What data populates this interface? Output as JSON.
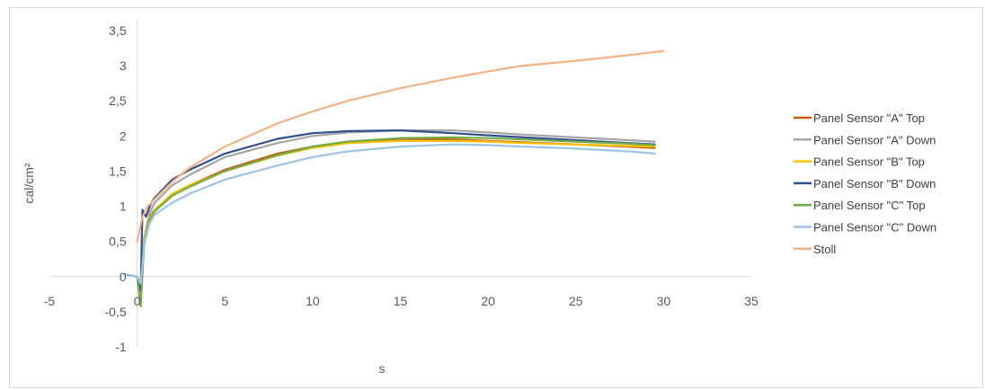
{
  "chart_data": {
    "type": "line",
    "title": "",
    "xlabel": "s",
    "ylabel": "cal/cm²",
    "xlim": [
      -5,
      35
    ],
    "ylim": [
      -1,
      3.5
    ],
    "x_ticks": [
      "-5",
      "0",
      "5",
      "10",
      "15",
      "20",
      "25",
      "30",
      "35"
    ],
    "y_ticks": [
      "-1",
      "-0,5",
      "0",
      "0,5",
      "1",
      "1,5",
      "2",
      "2,5",
      "3",
      "3,5"
    ],
    "grid": false,
    "legend_position": "right",
    "series": [
      {
        "name": "Panel Sensor \"A\" Top",
        "color": "#c55a11",
        "x": [
          -0.7,
          0,
          0.2,
          0.4,
          0.7,
          1,
          2,
          3,
          5,
          8,
          10,
          12,
          15,
          18,
          20,
          22,
          25,
          28,
          29.5
        ],
        "y": [
          0.03,
          0,
          -0.15,
          0.5,
          0.85,
          0.95,
          1.15,
          1.3,
          1.52,
          1.75,
          1.85,
          1.92,
          1.96,
          1.95,
          1.93,
          1.91,
          1.88,
          1.85,
          1.83
        ]
      },
      {
        "name": "Panel Sensor \"A\" Down",
        "color": "#a5a5a5",
        "x": [
          -0.7,
          0,
          0.2,
          0.4,
          0.7,
          1,
          2,
          3,
          5,
          8,
          10,
          12,
          15,
          18,
          20,
          22,
          25,
          28,
          29.5
        ],
        "y": [
          0.03,
          0,
          -0.2,
          0.55,
          0.9,
          1.05,
          1.3,
          1.45,
          1.7,
          1.9,
          2.0,
          2.05,
          2.08,
          2.08,
          2.05,
          2.02,
          1.98,
          1.94,
          1.92
        ]
      },
      {
        "name": "Panel Sensor \"B\" Top",
        "color": "#ffc000",
        "x": [
          -0.7,
          0,
          0.2,
          0.4,
          0.7,
          1,
          2,
          3,
          5,
          8,
          10,
          12,
          15,
          18,
          20,
          22,
          25,
          28,
          29.5
        ],
        "y": [
          0.03,
          0,
          -0.3,
          0.5,
          0.82,
          0.95,
          1.18,
          1.3,
          1.5,
          1.72,
          1.83,
          1.9,
          1.93,
          1.93,
          1.92,
          1.9,
          1.88,
          1.86,
          1.85
        ]
      },
      {
        "name": "Panel Sensor \"B\" Down",
        "color": "#2f4f8f",
        "x": [
          -0.7,
          0,
          0.2,
          0.3,
          0.5,
          0.8,
          1,
          2,
          3,
          5,
          8,
          10,
          12,
          15,
          18,
          20,
          22,
          25,
          28,
          29.5
        ],
        "y": [
          0.03,
          0,
          -0.2,
          0.95,
          0.85,
          1.05,
          1.12,
          1.38,
          1.52,
          1.75,
          1.96,
          2.04,
          2.07,
          2.08,
          2.04,
          2.01,
          1.98,
          1.94,
          1.9,
          1.88
        ]
      },
      {
        "name": "Panel Sensor \"C\" Top",
        "color": "#70ad47",
        "x": [
          -0.7,
          0,
          0.2,
          0.4,
          0.7,
          1,
          2,
          3,
          5,
          8,
          10,
          12,
          15,
          18,
          20,
          22,
          25,
          28,
          29.5
        ],
        "y": [
          0.03,
          0,
          -0.42,
          0.45,
          0.8,
          0.93,
          1.15,
          1.28,
          1.5,
          1.73,
          1.85,
          1.92,
          1.97,
          1.98,
          1.97,
          1.95,
          1.92,
          1.89,
          1.87
        ]
      },
      {
        "name": "Panel Sensor \"C\" Down",
        "color": "#9dc3e6",
        "x": [
          -0.7,
          0,
          0.2,
          0.4,
          0.7,
          1,
          2,
          3,
          5,
          8,
          10,
          12,
          15,
          18,
          20,
          22,
          25,
          28,
          29.5
        ],
        "y": [
          0.03,
          0,
          -0.1,
          0.45,
          0.75,
          0.88,
          1.05,
          1.18,
          1.38,
          1.58,
          1.7,
          1.78,
          1.85,
          1.88,
          1.87,
          1.85,
          1.82,
          1.78,
          1.75
        ]
      },
      {
        "name": "Stoll",
        "color": "#f4b183",
        "x": [
          0,
          0.3,
          0.6,
          1,
          2,
          3,
          5,
          8,
          10,
          12,
          15,
          18,
          20,
          22,
          25,
          28,
          30
        ],
        "y": [
          0.5,
          0.85,
          1.0,
          1.1,
          1.35,
          1.55,
          1.85,
          2.18,
          2.35,
          2.5,
          2.68,
          2.83,
          2.92,
          3.0,
          3.07,
          3.15,
          3.21
        ]
      }
    ]
  }
}
